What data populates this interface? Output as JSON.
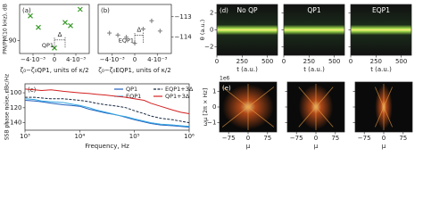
{
  "chart_data": [
    {
      "type": "scatter",
      "panel_label": "(a)",
      "ylabel": "PM/PM(10 kHz), dB",
      "xlabel": "ζ₀−ζ₀QP1, units of κ/2",
      "marker": "x",
      "color": "#3a9a2a",
      "x": [
        -0.0045,
        -0.003,
        0,
        0.002,
        0.003,
        0.0048
      ],
      "values": [
        -82.5,
        -86,
        -92.3,
        -84.5,
        -85.5,
        -80.5
      ],
      "annotations": [
        "QP1",
        "Δ"
      ],
      "xlim": [
        -0.0065,
        0.0065
      ],
      "xticks": [
        {
          "value": -0.004,
          "label": "−4·10⁻³"
        },
        0,
        {
          "value": 0.004,
          "label": "4·10⁻³"
        }
      ],
      "ylim": [
        -94,
        -79
      ],
      "yticks": [
        {
          "value": -90,
          "label": "−90"
        }
      ]
    },
    {
      "type": "scatter",
      "panel_label": "(b)",
      "xlabel": "ζ₀−ζ₀EQP1, units of κ/2",
      "marker": "+",
      "color": "#888888",
      "y_axis_side": "right",
      "x": [
        -0.0045,
        -0.003,
        -0.0015,
        0,
        0.0015,
        0.003,
        0.0045
      ],
      "values": [
        -113.8,
        -113.9,
        -114.0,
        -114.3,
        -113.6,
        -113.2,
        -113.7
      ],
      "annotations": [
        "EQP1",
        "Δ"
      ],
      "xlim": [
        -0.0065,
        0.0065
      ],
      "xticks": [
        {
          "value": -0.004,
          "label": "−4·10⁻³"
        },
        0,
        {
          "value": 0.004,
          "label": "4·10⁻³"
        }
      ],
      "ylim": [
        -114.8,
        -112.4
      ],
      "yticks": [
        {
          "value": -113,
          "label": "−113"
        },
        {
          "value": -114,
          "label": "−114"
        }
      ]
    },
    {
      "type": "line",
      "panel_label": "(c)",
      "ylabel": "SSB phase noise, dBc/Hz",
      "xlabel": "Frequency, Hz",
      "xlog": true,
      "x": [
        1000,
        1500,
        2000,
        3000,
        5000,
        7000,
        10000,
        15000,
        20000,
        30000,
        50000,
        70000,
        100000,
        150000,
        200000,
        300000,
        500000,
        700000,
        1000000
      ],
      "series": [
        {
          "name": "QP1",
          "color": "#1f5fbf",
          "dash": false,
          "values": [
            -110,
            -111,
            -112,
            -114,
            -116,
            -117,
            -118,
            -122,
            -124,
            -127,
            -130,
            -133,
            -136,
            -139,
            -141,
            -143,
            -144,
            -145,
            -146
          ]
        },
        {
          "name": "EQP1",
          "color": "#35a7e0",
          "dash": false,
          "values": [
            -108,
            -109,
            -111,
            -112,
            -113,
            -115,
            -117,
            -120,
            -123,
            -126,
            -130,
            -132,
            -135,
            -138,
            -140,
            -142,
            -143,
            -144,
            -145
          ]
        },
        {
          "name": "EQP1+3Δ",
          "color": "#1a2a40",
          "dash": true,
          "values": [
            -106,
            -106,
            -107,
            -108,
            -108,
            -109,
            -110,
            -112,
            -114,
            -116,
            -118,
            -120,
            -124,
            -128,
            -131,
            -134,
            -136,
            -138,
            -140
          ]
        },
        {
          "name": "QP1+3Δ",
          "color": "#d42020",
          "dash": false,
          "values": [
            -95,
            -96,
            -97,
            -96,
            -98,
            -99,
            -100,
            -101,
            -102,
            -103,
            -105,
            -106,
            -108,
            -110,
            -114,
            -118,
            -123,
            -126,
            -128
          ]
        }
      ],
      "xlim": [
        1000,
        1000000
      ],
      "xticks": [
        {
          "value": 1000,
          "label": "10³"
        },
        {
          "value": 10000,
          "label": "10⁴"
        },
        {
          "value": 100000,
          "label": "10⁵"
        },
        {
          "value": 1000000,
          "label": "10⁶"
        }
      ],
      "ylim": [
        -150,
        -88
      ],
      "yticks": [
        {
          "value": -100,
          "label": "−100"
        },
        {
          "value": -120,
          "label": "−120"
        },
        {
          "value": -140,
          "label": "−140"
        }
      ]
    },
    {
      "type": "heatmap",
      "panel_label": "(d)",
      "style": "line",
      "titles": [
        "No QP",
        "QP1",
        "EQP1"
      ],
      "ylabel": "θ (a.u.)",
      "xlabel": "t (a.u.)",
      "xlim": [
        0,
        600
      ],
      "xticks": [
        0,
        250,
        500
      ],
      "ylim": [
        -3,
        3
      ],
      "yticks": [
        2,
        0,
        {
          "value": -2,
          "label": "−2"
        }
      ]
    },
    {
      "type": "heatmap",
      "panel_label": "(e)",
      "style": "cross",
      "offset_label": "1e6",
      "ylabel": "ωμ [2π × Hz]",
      "xlabel": "μ",
      "xlim": [
        -110,
        110
      ],
      "xticks": [
        {
          "value": -75,
          "label": "−75"
        },
        0,
        75
      ],
      "ylim": [
        -1.6,
        1.6
      ],
      "yticks": [
        1,
        0,
        {
          "value": -1,
          "label": "−1"
        }
      ]
    }
  ]
}
